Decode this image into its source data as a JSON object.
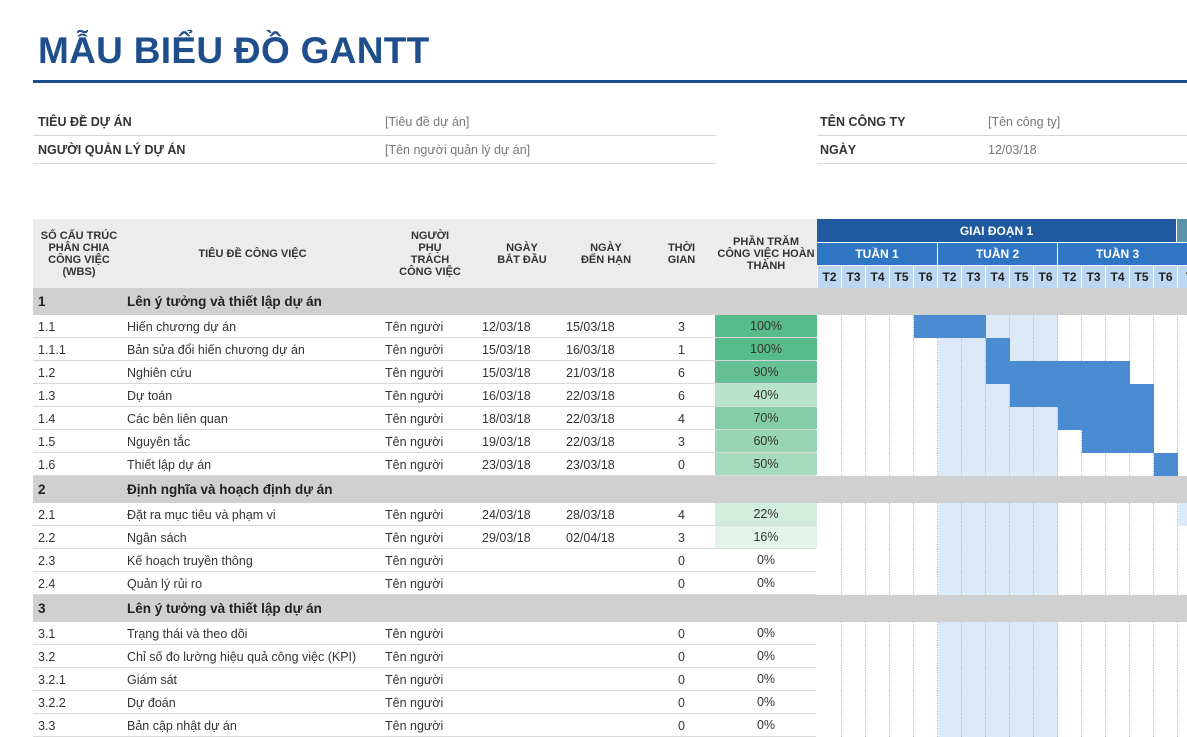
{
  "title": "MẪU BIỂU ĐỒ GANTT",
  "info": {
    "project_title_label": "TIÊU ĐỀ DỰ ÁN",
    "project_title_value": "[Tiêu đề dự án]",
    "manager_label": "NGƯỜI QUẢN LÝ DỰ ÁN",
    "manager_value": "[Tên người quản lý dự án]",
    "company_label": "TÊN CÔNG TY",
    "company_value": "[Tên công ty]",
    "date_label": "NGÀY",
    "date_value": "12/03/18"
  },
  "headers": {
    "wbs": "SỐ CẤU TRÚC PHÂN CHIA CÔNG VIỆC (WBS)",
    "task": "TIÊU ĐỀ CÔNG VIỆC",
    "owner": "NGƯỜI PHỤ TRÁCH CÔNG VIỆC",
    "start": "NGÀY BẮT ĐẦU",
    "end": "NGÀY ĐẾN HẠN",
    "duration": "THỜI GIAN",
    "percent": "PHẦN TRĂM CÔNG VIỆC HOÀN THÀNH"
  },
  "gantt": {
    "phase": "GIAI ĐOẠN 1",
    "weeks": [
      "TUẦN 1",
      "TUẦN 2",
      "TUẦN 3"
    ],
    "days": [
      "T2",
      "T3",
      "T4",
      "T5",
      "T6",
      "T2",
      "T3",
      "T4",
      "T5",
      "T6",
      "T2",
      "T3",
      "T4",
      "T5",
      "T6",
      "T"
    ]
  },
  "rows": [
    {
      "type": "section",
      "wbs": "1",
      "task": "Lên ý tưởng và thiết lập dự án"
    },
    {
      "type": "task",
      "wbs": "1.1",
      "task": "Hiến chương dự án",
      "owner": "Tên người",
      "start": "12/03/18",
      "end": "15/03/18",
      "duration": "3",
      "percent": "100%",
      "pct_value": 100,
      "bar_start_day": 4,
      "bar_len": 3
    },
    {
      "type": "task",
      "wbs": "1.1.1",
      "task": "Bản sửa đổi hiến chương dự án",
      "owner": "Tên người",
      "start": "15/03/18",
      "end": "16/03/18",
      "duration": "1",
      "percent": "100%",
      "pct_value": 100,
      "bar_start_day": 7,
      "bar_len": 1
    },
    {
      "type": "task",
      "wbs": "1.2",
      "task": "Nghiên cứu",
      "owner": "Tên người",
      "start": "15/03/18",
      "end": "21/03/18",
      "duration": "6",
      "percent": "90%",
      "pct_value": 90,
      "bar_start_day": 7,
      "bar_len": 6
    },
    {
      "type": "task",
      "wbs": "1.3",
      "task": "Dự toán",
      "owner": "Tên người",
      "start": "16/03/18",
      "end": "22/03/18",
      "duration": "6",
      "percent": "40%",
      "pct_value": 40,
      "bar_start_day": 8,
      "bar_len": 6
    },
    {
      "type": "task",
      "wbs": "1.4",
      "task": "Các bên liên quan",
      "owner": "Tên người",
      "start": "18/03/18",
      "end": "22/03/18",
      "duration": "4",
      "percent": "70%",
      "pct_value": 70,
      "bar_start_day": 10,
      "bar_len": 4
    },
    {
      "type": "task",
      "wbs": "1.5",
      "task": "Nguyên tắc",
      "owner": "Tên người",
      "start": "19/03/18",
      "end": "22/03/18",
      "duration": "3",
      "percent": "60%",
      "pct_value": 60,
      "bar_start_day": 11,
      "bar_len": 3
    },
    {
      "type": "task",
      "wbs": "1.6",
      "task": "Thiết lập dự án",
      "owner": "Tên người",
      "start": "23/03/18",
      "end": "23/03/18",
      "duration": "0",
      "percent": "50%",
      "pct_value": 50,
      "bar_start_day": 14,
      "bar_len": 1
    },
    {
      "type": "section",
      "wbs": "2",
      "task": "Định nghĩa và hoạch định dự án"
    },
    {
      "type": "task",
      "wbs": "2.1",
      "task": "Đặt ra mục tiêu và phạm vi",
      "owner": "Tên người",
      "start": "24/03/18",
      "end": "28/03/18",
      "duration": "4",
      "percent": "22%",
      "pct_value": 22,
      "bar_start_day": 15,
      "bar_len": 1
    },
    {
      "type": "task",
      "wbs": "2.2",
      "task": "Ngân sách",
      "owner": "Tên người",
      "start": "29/03/18",
      "end": "02/04/18",
      "duration": "3",
      "percent": "16%",
      "pct_value": 16,
      "bar_start_day": -1,
      "bar_len": 0
    },
    {
      "type": "task",
      "wbs": "2.3",
      "task": "Kế hoạch truyền thông",
      "owner": "Tên người",
      "start": "",
      "end": "",
      "duration": "0",
      "percent": "0%",
      "pct_value": 0,
      "bar_start_day": -1,
      "bar_len": 0
    },
    {
      "type": "task",
      "wbs": "2.4",
      "task": "Quản lý rủi ro",
      "owner": "Tên người",
      "start": "",
      "end": "",
      "duration": "0",
      "percent": "0%",
      "pct_value": 0,
      "bar_start_day": -1,
      "bar_len": 0
    },
    {
      "type": "section",
      "wbs": "3",
      "task": "Lên ý tưởng và thiết lập dự án"
    },
    {
      "type": "task",
      "wbs": "3.1",
      "task": "Trạng thái và theo dõi",
      "owner": "Tên người",
      "start": "",
      "end": "",
      "duration": "0",
      "percent": "0%",
      "pct_value": 0,
      "bar_start_day": -1,
      "bar_len": 0
    },
    {
      "type": "task",
      "wbs": "3.2",
      "task": "Chỉ số đo lường hiệu quả công việc (KPI)",
      "owner": "Tên người",
      "start": "",
      "end": "",
      "duration": "0",
      "percent": "0%",
      "pct_value": 0,
      "bar_start_day": -1,
      "bar_len": 0
    },
    {
      "type": "task",
      "wbs": "3.2.1",
      "task": "Giám sát",
      "owner": "Tên người",
      "start": "",
      "end": "",
      "duration": "0",
      "percent": "0%",
      "pct_value": 0,
      "bar_start_day": -1,
      "bar_len": 0
    },
    {
      "type": "task",
      "wbs": "3.2.2",
      "task": "Dự đoán",
      "owner": "Tên người",
      "start": "",
      "end": "",
      "duration": "0",
      "percent": "0%",
      "pct_value": 0,
      "bar_start_day": -1,
      "bar_len": 0
    },
    {
      "type": "task",
      "wbs": "3.3",
      "task": "Bản cập nhật dự án",
      "owner": "Tên người",
      "start": "",
      "end": "",
      "duration": "0",
      "percent": "0%",
      "pct_value": 0,
      "bar_start_day": -1,
      "bar_len": 0
    }
  ]
}
